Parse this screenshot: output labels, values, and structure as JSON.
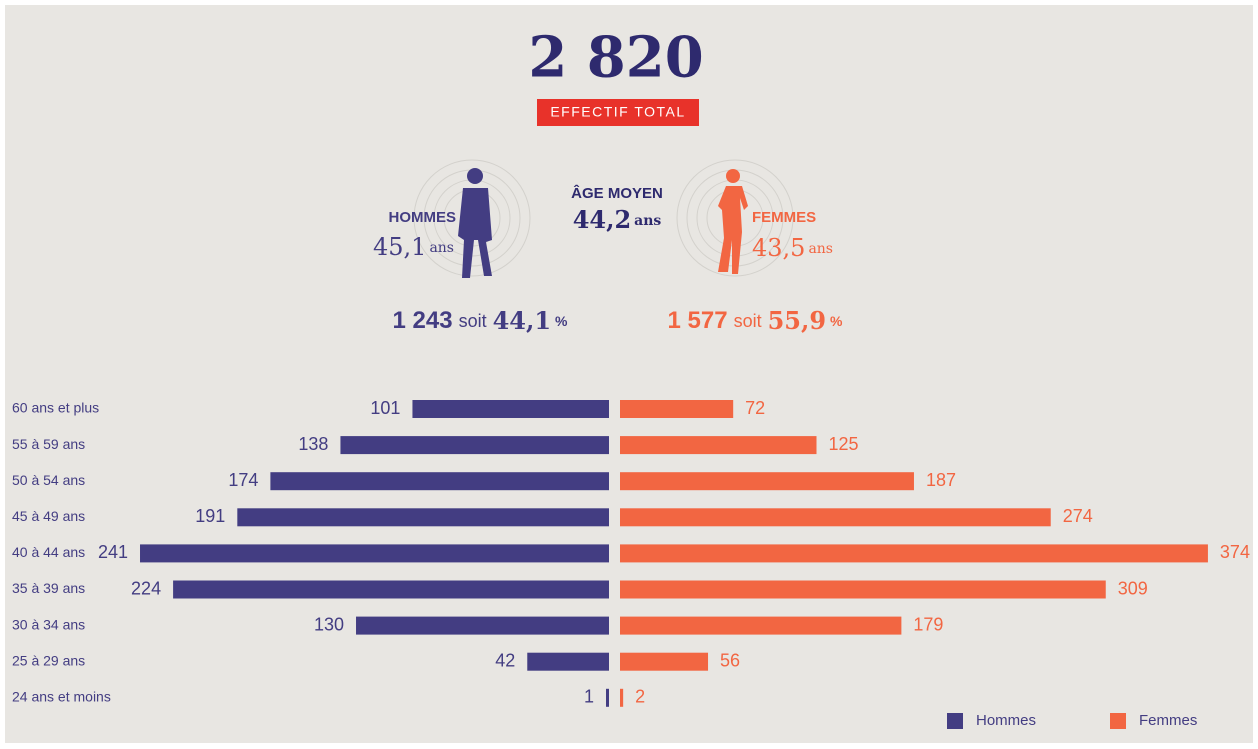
{
  "header": {
    "total": "2 820",
    "total_label": "EFFECTIF TOTAL"
  },
  "men": {
    "label": "HOMMES",
    "age": "45,1",
    "unit": "ans",
    "count": "1 243",
    "word": "soit",
    "share": "44,1",
    "percent": "%"
  },
  "average": {
    "label": "ÂGE MOYEN",
    "age": "44,2",
    "unit": "ans"
  },
  "women": {
    "label": "FEMMES",
    "age": "43,5",
    "unit": "ans",
    "count": "1 577",
    "word": "soit",
    "share": "55,9",
    "percent": "%"
  },
  "chart_data": {
    "type": "pyramid",
    "categories": [
      "60 ans et plus",
      "55 à 59 ans",
      "50 à 54 ans",
      "45 à 49 ans",
      "40 à 44 ans",
      "35 à 39 ans",
      "30 à 34 ans",
      "25 à 29 ans",
      "24 ans et moins"
    ],
    "series": [
      {
        "name": "Hommes",
        "color": "#433d82",
        "values": [
          101,
          138,
          174,
          191,
          241,
          224,
          130,
          42,
          1
        ]
      },
      {
        "name": "Femmes",
        "color": "#f26642",
        "values": [
          72,
          125,
          187,
          274,
          374,
          309,
          179,
          56,
          2
        ]
      }
    ],
    "legend": "bottom-right"
  }
}
